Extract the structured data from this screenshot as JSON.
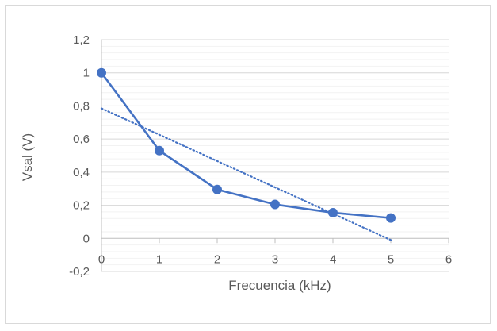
{
  "chart_data": {
    "type": "scatter",
    "title": "",
    "xlabel": "Frecuencia (kHz)",
    "ylabel": "Vsal (V)",
    "xlim": [
      0,
      6
    ],
    "ylim": [
      -0.2,
      1.2
    ],
    "x_ticks": [
      0,
      1,
      2,
      3,
      4,
      5,
      6
    ],
    "x_tick_labels": [
      "0",
      "1",
      "2",
      "3",
      "4",
      "5",
      "6"
    ],
    "y_ticks": [
      -0.2,
      0,
      0.2,
      0.4,
      0.6,
      0.8,
      1,
      1.2
    ],
    "y_tick_labels": [
      "-0,2",
      "0",
      "0,2",
      "0,4",
      "0,6",
      "0,8",
      "1",
      "1,2"
    ],
    "grid": true,
    "legend": "none",
    "series": [
      {
        "style": "line-markers",
        "color": "#4472c4",
        "x": [
          0,
          1,
          2,
          3,
          4,
          5
        ],
        "y": [
          1.0,
          0.53,
          0.295,
          0.205,
          0.155,
          0.123
        ]
      }
    ],
    "trendline": {
      "type": "linear",
      "style": "dotted",
      "color": "#4472c4",
      "x": [
        0,
        5
      ],
      "y": [
        0.785,
        -0.01
      ]
    }
  }
}
